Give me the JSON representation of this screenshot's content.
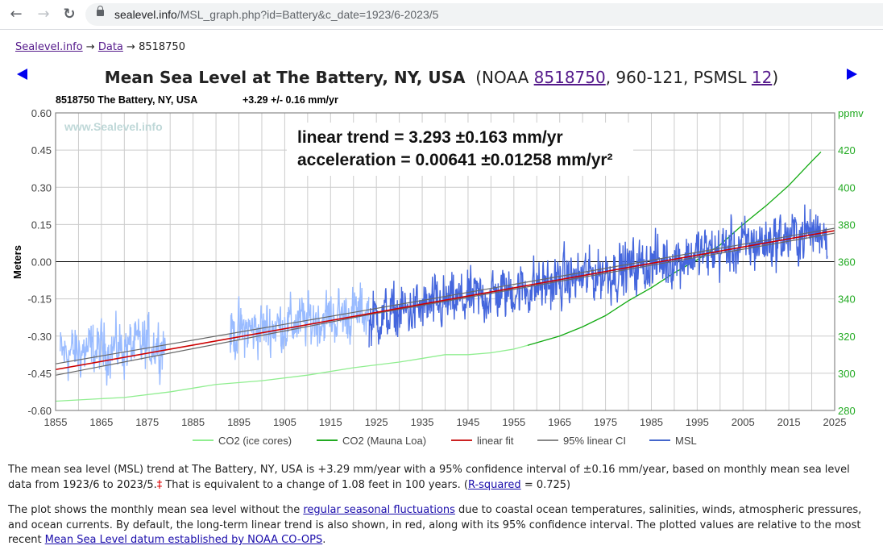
{
  "browser": {
    "url_host": "sealevel.info",
    "url_path": "/MSL_graph.php?id=Battery&c_date=1923/6-2023/5",
    "back_icon": "←",
    "forward_icon": "→",
    "reload_icon": "↻"
  },
  "breadcrumb": {
    "items": [
      "Sealevel.info",
      "Data"
    ],
    "separator": "→",
    "current": "8518750"
  },
  "header": {
    "title_bold": "Mean Sea Level at The Battery, NY, USA",
    "title_prefix": "(NOAA ",
    "noaa_id": "8518750",
    "mid_text": ", 960-121, PSMSL ",
    "psmsl_id": "12",
    "suffix": ")"
  },
  "chart_data": {
    "type": "line",
    "subtitle_station": "8518750 The Battery, NY, USA",
    "subtitle_rate": "+3.29 +/- 0.16 mm/yr",
    "watermark": "www.Sealevel.info",
    "annotation": {
      "line1": "linear trend = 3.293 ±0.163 mm/yr",
      "line2": "acceleration = 0.00641 ±0.01258 mm/yr²"
    },
    "ylabel": "Meters",
    "y2label": "ppmv",
    "xlim": [
      1855,
      2025
    ],
    "ylim": [
      -0.6,
      0.6
    ],
    "y2lim": [
      280,
      440
    ],
    "x_ticks": [
      1855,
      1865,
      1875,
      1885,
      1895,
      1905,
      1915,
      1925,
      1935,
      1945,
      1955,
      1965,
      1975,
      1985,
      1995,
      2005,
      2015,
      2025
    ],
    "y_ticks": [
      "0.60",
      "0.45",
      "0.30",
      "0.15",
      "0.00",
      "-0.15",
      "-0.30",
      "-0.45",
      "-0.60"
    ],
    "y2_ticks": [
      "420",
      "400",
      "380",
      "360",
      "340",
      "320",
      "300",
      "280"
    ],
    "grid": true,
    "legend_position": "bottom",
    "legend": [
      {
        "name": "CO2 (ice cores)",
        "color": "#90ee90"
      },
      {
        "name": "CO2 (Mauna Loa)",
        "color": "#22aa22"
      },
      {
        "name": "linear fit",
        "color": "#cc2222"
      },
      {
        "name": "95% linear CI",
        "color": "#888888"
      },
      {
        "name": "MSL",
        "color": "#4466cc"
      }
    ],
    "colors": {
      "msl_early": "#99bbff",
      "msl": "#4466dd",
      "fit": "#cc0000",
      "ci": "#666666",
      "co2_ice": "#90ee90",
      "co2_ml": "#11aa11",
      "axis_right": "#22aa22"
    },
    "series": [
      {
        "name": "linear fit",
        "x": [
          1855,
          2025
        ],
        "y": [
          -0.435,
          0.125
        ]
      },
      {
        "name": "95% CI upper",
        "x": [
          1855,
          1923,
          2025
        ],
        "y": [
          -0.412,
          -0.195,
          0.135
        ]
      },
      {
        "name": "95% CI lower",
        "x": [
          1855,
          1923,
          2025
        ],
        "y": [
          -0.458,
          -0.215,
          0.115
        ]
      },
      {
        "name": "CO2 (ice cores)",
        "x": [
          1855,
          1870,
          1880,
          1890,
          1900,
          1910,
          1920,
          1930,
          1940,
          1945,
          1950,
          1955,
          1958
        ],
        "ppmv": [
          285,
          287,
          290,
          294,
          296,
          299,
          303,
          306,
          310,
          310,
          311,
          313,
          315
        ]
      },
      {
        "name": "CO2 (Mauna Loa)",
        "x": [
          1958,
          1965,
          1970,
          1975,
          1980,
          1985,
          1990,
          1995,
          2000,
          2005,
          2010,
          2015,
          2020,
          2022
        ],
        "ppmv": [
          315,
          320,
          325,
          331,
          339,
          346,
          354,
          361,
          369,
          380,
          390,
          401,
          414,
          419
        ]
      },
      {
        "name": "MSL",
        "segments": [
          {
            "from": 1856.0,
            "to": 1879.0,
            "style": "early",
            "mean_at_start": -0.37,
            "mean_at_end": -0.33
          },
          {
            "from": 1893.0,
            "to": 1923.4,
            "style": "early",
            "mean_at_start": -0.29,
            "mean_at_end": -0.2
          },
          {
            "from": 1923.4,
            "to": 2023.4,
            "style": "main",
            "mean_at_start": -0.23,
            "mean_at_end": 0.13
          }
        ],
        "noise_amplitude_m": 0.06,
        "note": "monthly values"
      }
    ]
  },
  "description": {
    "p1_a": "The mean sea level (MSL) trend at The Battery, NY, USA is +3.29 mm/year with a 95% confidence interval of ±0.16 mm/year, based on monthly mean sea level data from 1923/6 to 2023/5.",
    "p1_dagger": "‡",
    "p1_b": " That is equivalent to a change of 1.08 feet in 100 years. (",
    "p1_link": "R-squared",
    "p1_c": " = 0.725)",
    "p2_a": "The plot shows the monthly mean sea level without the ",
    "p2_link1": "regular seasonal fluctuations",
    "p2_b": " due to coastal ocean temperatures, salinities, winds, atmospheric pres­sures, and ocean currents. By default, the long-term linear trend is also shown, in red, along with its 95% confidence interval. The plotted values are relative to the most recent ",
    "p2_link2": "Mean Sea Level datum established by NOAA CO-OPS",
    "p2_c": "."
  }
}
